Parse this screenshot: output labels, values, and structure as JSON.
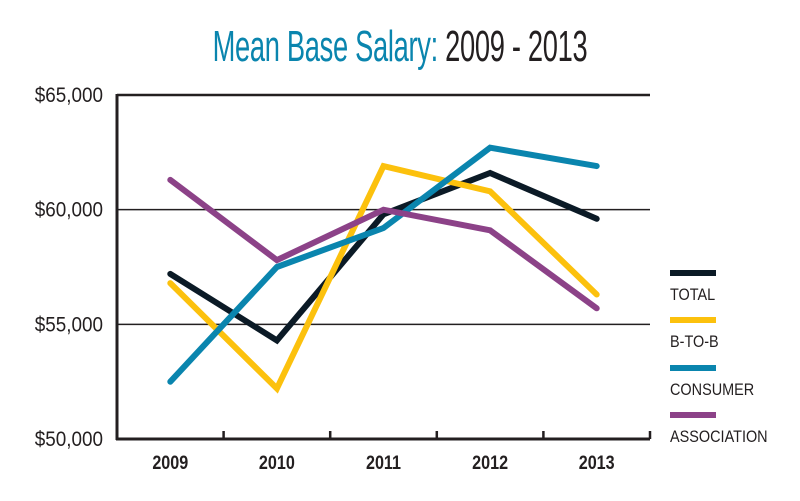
{
  "chart_data": {
    "type": "line",
    "title_main": "Mean Base Salary:",
    "title_years": "2009 - 2013",
    "title": "Mean Base Salary: 2009 - 2013",
    "xlabel": "",
    "ylabel": "",
    "categories": [
      "2009",
      "2010",
      "2011",
      "2012",
      "2013"
    ],
    "ylim": [
      50000,
      65000
    ],
    "yticks": [
      50000,
      55000,
      60000,
      65000
    ],
    "ytick_labels": [
      "$50,000",
      "$55,000",
      "$60,000",
      "$65,000"
    ],
    "grid": "horizontal",
    "legend_position": "right",
    "series": [
      {
        "name": "TOTAL",
        "color": "#0b1a26",
        "values": [
          57200,
          54300,
          59800,
          61600,
          59600
        ]
      },
      {
        "name": "B-TO-B",
        "color": "#fcc10d",
        "values": [
          56800,
          52200,
          61900,
          60800,
          56300
        ]
      },
      {
        "name": "CONSUMER",
        "color": "#0a85ae",
        "values": [
          52500,
          57500,
          59200,
          62700,
          61900
        ]
      },
      {
        "name": "ASSOCIATION",
        "color": "#8c4288",
        "values": [
          61300,
          57800,
          60000,
          59100,
          55700
        ]
      }
    ]
  }
}
